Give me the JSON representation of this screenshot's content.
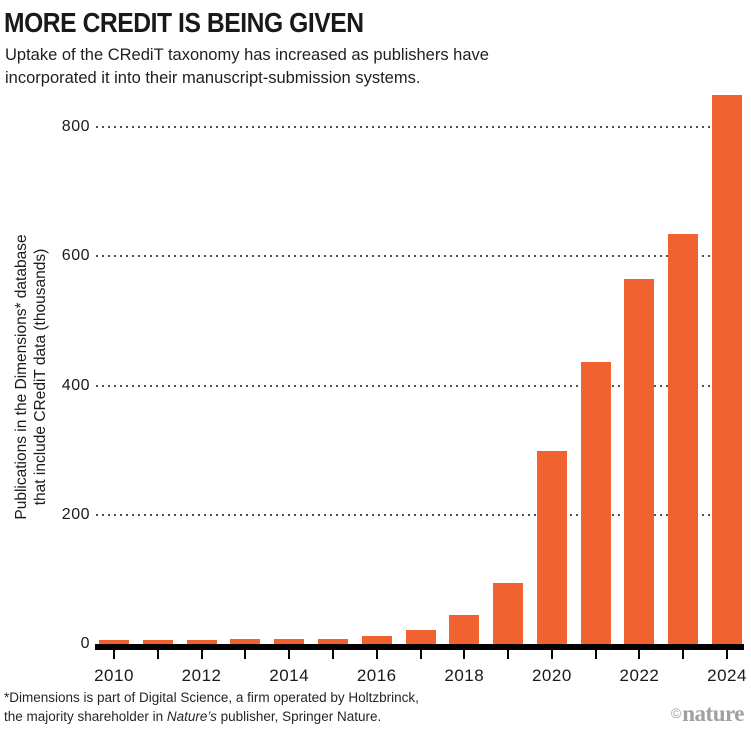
{
  "header": {
    "title": "MORE CREDIT IS BEING GIVEN",
    "subtitle_line1": "Uptake of the CRediT taxonomy has increased as publishers have",
    "subtitle_line2": "incorporated it into their manuscript-submission systems."
  },
  "chart_data": {
    "type": "bar",
    "title": "MORE CREDIT IS BEING GIVEN",
    "xlabel": "",
    "ylabel_line1": "Publications in the Dimensions* database",
    "ylabel_line2": "that include CRediT data (thousands)",
    "categories": [
      2010,
      2011,
      2012,
      2013,
      2014,
      2015,
      2016,
      2017,
      2018,
      2019,
      2020,
      2021,
      2022,
      2023,
      2024
    ],
    "values": [
      6,
      6,
      6,
      7,
      7,
      7,
      12,
      22,
      45,
      95,
      298,
      437,
      565,
      635,
      850
    ],
    "series_name": "Publications that include CRediT data (thousands)",
    "yticks": [
      0,
      200,
      400,
      600,
      800
    ],
    "xtick_labels": [
      "2010",
      "2012",
      "2014",
      "2016",
      "2018",
      "2020",
      "2022",
      "2024"
    ],
    "ylim": [
      0,
      850
    ],
    "grid": "horizontal dotted black lines at each y tick, bars drawn on top",
    "legend": "none",
    "bar_color": "#F0622F",
    "axis_color": "#000000"
  },
  "footnote": {
    "line1": "*Dimensions is part of Digital Science, a firm operated by Holtzbrinck,",
    "line2_pre": "the majority shareholder in ",
    "line2_italic": "Nature’s",
    "line2_post": " publisher, Springer Nature."
  },
  "credit": {
    "symbol": "©",
    "name": "nature"
  }
}
